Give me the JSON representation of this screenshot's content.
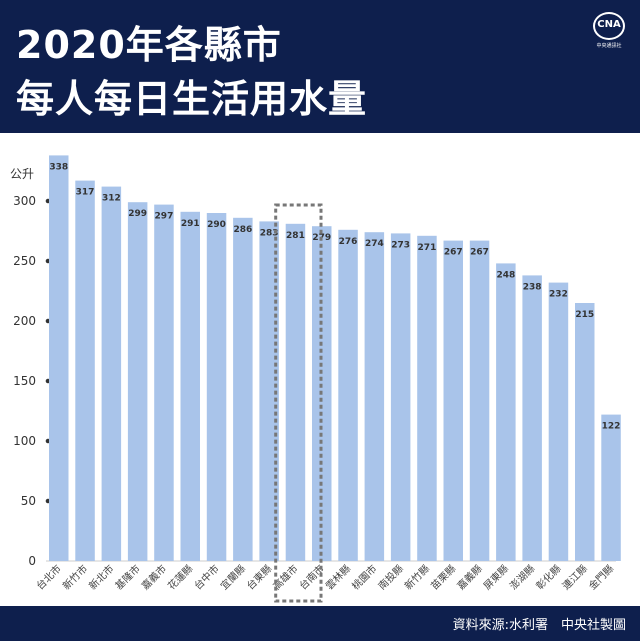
{
  "header": {
    "title_line1": "2020年各縣市",
    "title_line2": "每人每日生活用水量",
    "logo_text": "CNA",
    "logo_sub": "中央通訊社"
  },
  "footer": {
    "source": "資料來源:水利署　中央社製圖"
  },
  "colors": {
    "header_bg": "#0e1f4d",
    "bar": "#a9c4ea",
    "highlight_box": "#777777"
  },
  "chart_data": {
    "type": "bar",
    "title": "2020年各縣市每人每日生活用水量",
    "ylabel": "公升",
    "xlabel": "",
    "ylim": [
      0,
      340
    ],
    "yticks": [
      0,
      50,
      100,
      150,
      200,
      250,
      300
    ],
    "grid": false,
    "highlight": "高雄市",
    "categories": [
      "台北市",
      "新竹市",
      "新北市",
      "基隆市",
      "嘉義市",
      "花蓮縣",
      "台中市",
      "宜蘭縣",
      "台東縣",
      "高雄市",
      "台南市",
      "雲林縣",
      "桃園市",
      "南投縣",
      "新竹縣",
      "苗栗縣",
      "嘉義縣",
      "屏東縣",
      "澎湖縣",
      "彰化縣",
      "連江縣",
      "金門縣"
    ],
    "values": [
      338,
      317,
      312,
      299,
      297,
      291,
      290,
      286,
      283,
      281,
      279,
      276,
      274,
      273,
      271,
      267,
      267,
      248,
      238,
      232,
      215,
      122
    ]
  }
}
